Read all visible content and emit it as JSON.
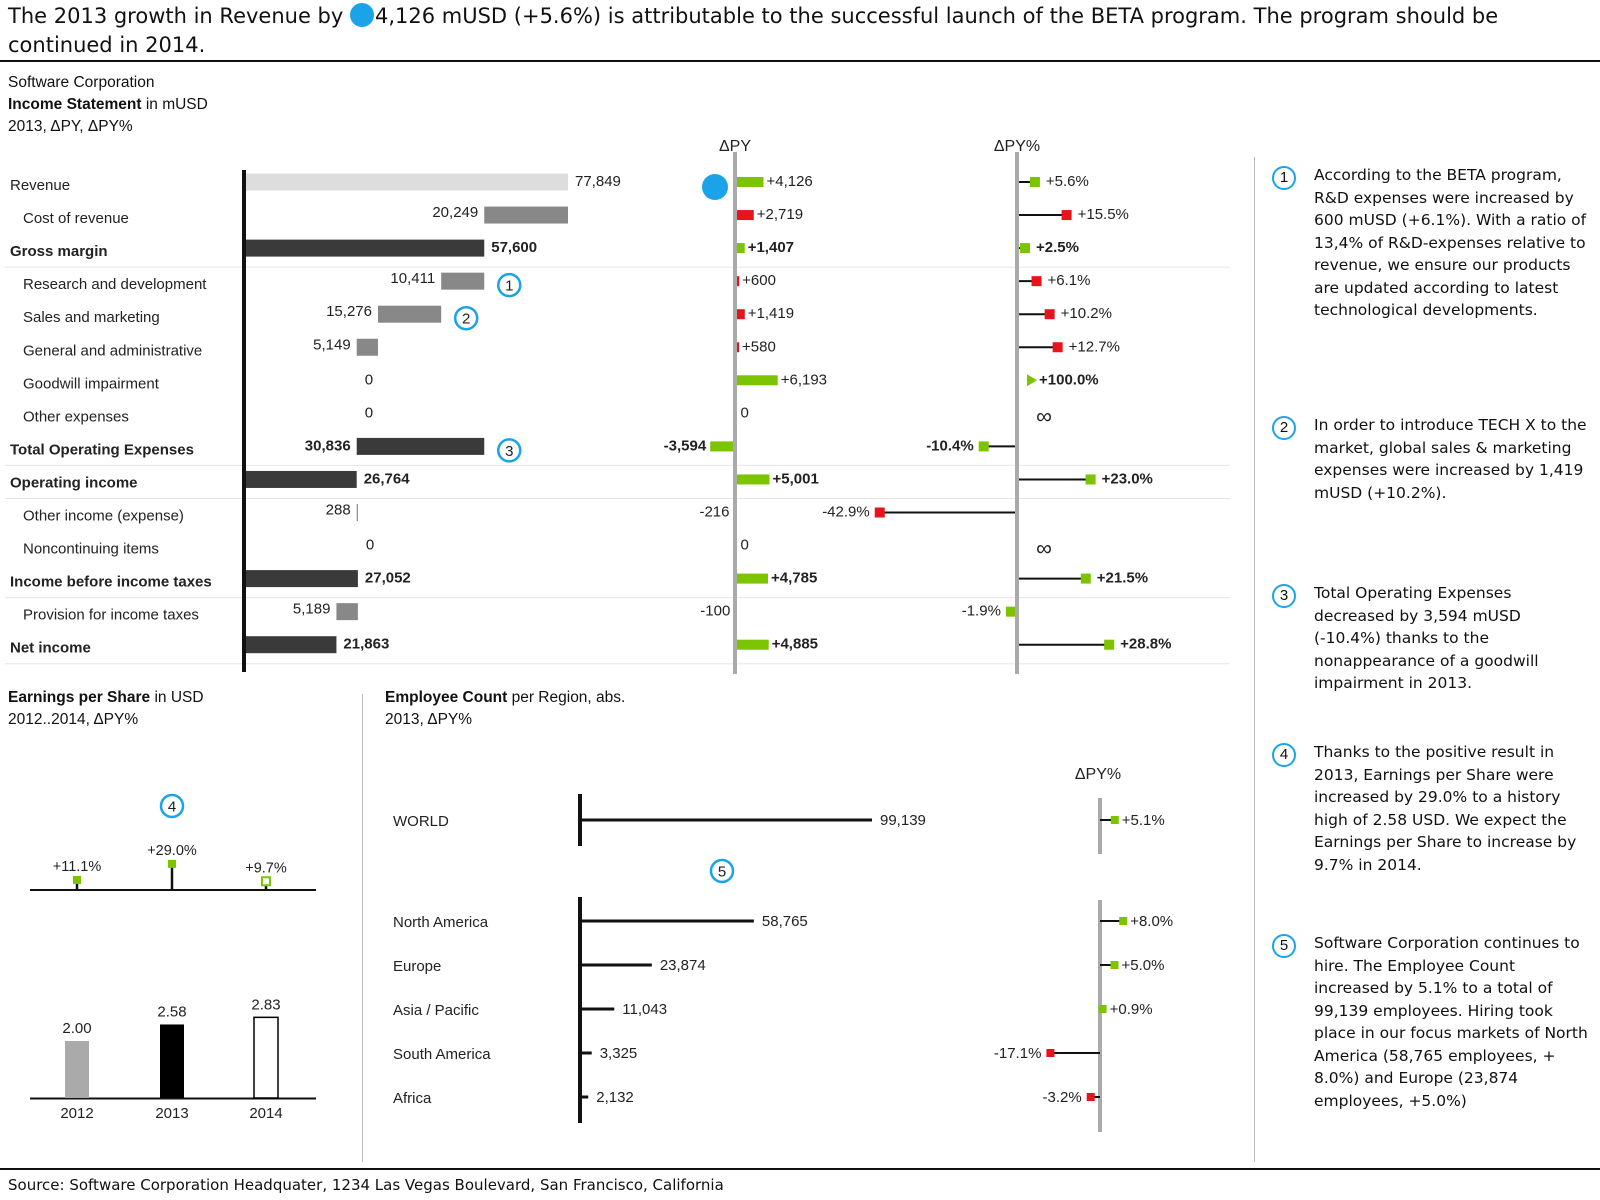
{
  "headline": {
    "before": "The 2013 growth in Revenue by ",
    "after": "4,126 mUSD (+5.6%) is attributable to the successful launch of the BETA program. The program should be continued in 2014."
  },
  "income": {
    "company": "Software Corporation",
    "title_bold": "Income Statement",
    "title_rest": " in mUSD",
    "subtitle": "2013, ΔPY, ΔPY%",
    "dpy_header": "ΔPY",
    "dpyp_header": "ΔPY%"
  },
  "eps": {
    "title_bold": "Earnings per Share",
    "title_rest": " in USD",
    "subtitle": "2012..2014, ΔPY%"
  },
  "emp": {
    "title_bold": "Employee Count",
    "title_rest": " per Region, abs.",
    "subtitle": "2013, ΔPY%",
    "dpyp_header": "ΔPY%"
  },
  "notes": [
    {
      "n": "1",
      "text": "According to the BETA program, R&D expenses were increased by 600 mUSD (+6.1%). With a ratio of 13,4% of R&D-expenses relative to revenue, we ensure our products are updated according to latest technological developments."
    },
    {
      "n": "2",
      "text": "In order to introduce TECH X to the market, global sales & marketing expenses were increased by 1,419 mUSD (+10.2%)."
    },
    {
      "n": "3",
      "text": "Total Operating Expenses decreased by 3,594 mUSD (-10.4%) thanks to the nonappearance of a goodwill impairment in 2013."
    },
    {
      "n": "4",
      "text": "Thanks to the positive result in 2013, Earnings per Share were increased by 29.0% to a history high of 2.58 USD. We expect the Earnings per Share to increase by 9.7% in 2014."
    },
    {
      "n": "5",
      "text": "Software Corporation continues to hire. The Employee Count increased by 5.1% to a total of 99,139 employees. Hiring took place in our focus markets of North America (58,765 employees, + 8.0%) and Europe (23,874 employees, +5.0%)"
    }
  ],
  "source": "Source: Software Corporation Headquater, 1234 Las Vegas Boulevard, San Francisco, California",
  "colors": {
    "accent": "#1aa3e8",
    "good": "#7cc400",
    "bad": "#e8141c",
    "total": "#3a3a3a",
    "sub": "#888888",
    "base": "#dddddd"
  },
  "chart_data": [
    {
      "type": "bar",
      "name": "income-statement",
      "rows": [
        {
          "label": "Revenue",
          "value": 77849,
          "value_label": "77,849",
          "kind": "base",
          "bold": false,
          "indent": false,
          "dpy": 4126,
          "dpy_label": "+4,126",
          "dpy_good": true,
          "dpyp": 5.6,
          "dpyp_label": "+5.6%",
          "dpyp_good": true,
          "marker": "dot"
        },
        {
          "label": "Cost of revenue",
          "value": 20249,
          "value_label": "20,249",
          "kind": "sub",
          "bold": false,
          "indent": true,
          "dpy": 2719,
          "dpy_label": "+2,719",
          "dpy_good": false,
          "dpyp": 15.5,
          "dpyp_label": "+15.5%",
          "dpyp_good": false
        },
        {
          "label": "Gross margin",
          "value": 57600,
          "value_label": "57,600",
          "kind": "total",
          "bold": true,
          "indent": false,
          "dpy": 1407,
          "dpy_label": "+1,407",
          "dpy_good": true,
          "dpyp": 2.5,
          "dpyp_label": "+2.5%",
          "dpyp_good": true,
          "sep": true
        },
        {
          "label": "Research and development",
          "value": 10411,
          "value_label": "10,411",
          "kind": "sub",
          "bold": false,
          "indent": true,
          "dpy": 600,
          "dpy_label": "+600",
          "dpy_good": false,
          "dpyp": 6.1,
          "dpyp_label": "+6.1%",
          "dpyp_good": false,
          "marker": "1"
        },
        {
          "label": "Sales and marketing",
          "value": 15276,
          "value_label": "15,276",
          "kind": "sub",
          "bold": false,
          "indent": true,
          "dpy": 1419,
          "dpy_label": "+1,419",
          "dpy_good": false,
          "dpyp": 10.2,
          "dpyp_label": "+10.2%",
          "dpyp_good": false,
          "marker": "2"
        },
        {
          "label": "General and administrative",
          "value": 5149,
          "value_label": "5,149",
          "kind": "sub",
          "bold": false,
          "indent": true,
          "dpy": 580,
          "dpy_label": "+580",
          "dpy_good": false,
          "dpyp": 12.7,
          "dpyp_label": "+12.7%",
          "dpyp_good": false
        },
        {
          "label": "Goodwill impairment",
          "value": 0,
          "value_label": "0",
          "kind": "sub",
          "bold": false,
          "indent": true,
          "dpy": 6193,
          "dpy_label": "+6,193",
          "dpy_good": true,
          "dpyp": 100.0,
          "dpyp_label": "+100.0%",
          "dpyp_good": true,
          "dpyp_bold": true,
          "dpyp_arrow": true
        },
        {
          "label": "Other expenses",
          "value": 0,
          "value_label": "0",
          "kind": "sub",
          "bold": false,
          "indent": true,
          "dpy": 0,
          "dpy_label": "0",
          "dpy_good": true,
          "dpyp": null,
          "dpyp_label": "∞",
          "dpyp_good": true
        },
        {
          "label": "Total Operating Expenses",
          "value": 30836,
          "value_label": "30,836",
          "kind": "total",
          "bold": true,
          "indent": false,
          "dpy": -3594,
          "dpy_label": "-3,594",
          "dpy_good": true,
          "dpyp": -10.4,
          "dpyp_label": "-10.4%",
          "dpyp_good": true,
          "marker": "3",
          "sep": true
        },
        {
          "label": "Operating income",
          "value": 26764,
          "value_label": "26,764",
          "kind": "total",
          "bold": true,
          "indent": false,
          "dpy": 5001,
          "dpy_label": "+5,001",
          "dpy_good": true,
          "dpyp": 23.0,
          "dpyp_label": "+23.0%",
          "dpyp_good": true,
          "sep": true
        },
        {
          "label": "Other income (expense)",
          "value": 288,
          "value_label": "288",
          "kind": "sub",
          "bold": false,
          "indent": true,
          "dpy": -216,
          "dpy_label": "-216",
          "dpy_good": false,
          "dpyp": -42.9,
          "dpyp_label": "-42.9%",
          "dpyp_good": false
        },
        {
          "label": "Noncontinuing items",
          "value": 0,
          "value_label": "0",
          "kind": "sub",
          "bold": false,
          "indent": true,
          "dpy": 0,
          "dpy_label": "0",
          "dpy_good": true,
          "dpyp": null,
          "dpyp_label": "∞",
          "dpyp_good": true
        },
        {
          "label": "Income before income taxes",
          "value": 27052,
          "value_label": "27,052",
          "kind": "total",
          "bold": true,
          "indent": false,
          "dpy": 4785,
          "dpy_label": "+4,785",
          "dpy_good": true,
          "dpyp": 21.5,
          "dpyp_label": "+21.5%",
          "dpyp_good": true,
          "sep": true
        },
        {
          "label": "Provision for income taxes",
          "value": 5189,
          "value_label": "5,189",
          "kind": "sub",
          "bold": false,
          "indent": true,
          "dpy": -100,
          "dpy_label": "-100",
          "dpy_good": true,
          "dpyp": -1.9,
          "dpyp_label": "-1.9%",
          "dpyp_good": true
        },
        {
          "label": "Net income",
          "value": 21863,
          "value_label": "21,863",
          "kind": "total",
          "bold": true,
          "indent": false,
          "dpy": 4885,
          "dpy_label": "+4,885",
          "dpy_good": true,
          "dpyp": 28.8,
          "dpyp_label": "+28.8%",
          "dpyp_good": true,
          "sep": true
        }
      ]
    },
    {
      "type": "bar",
      "name": "earnings-per-share",
      "categories": [
        "2012",
        "2013",
        "2014"
      ],
      "values": [
        2.0,
        2.58,
        2.83
      ],
      "value_labels": [
        "2.00",
        "2.58",
        "2.83"
      ],
      "styles": [
        "actual-prior",
        "actual",
        "plan"
      ],
      "dpyp": [
        11.1,
        29.0,
        9.7
      ],
      "dpyp_labels": [
        "+11.1%",
        "+29.0%",
        "+9.7%"
      ],
      "marker": "4"
    },
    {
      "type": "bar",
      "name": "employee-count",
      "world": {
        "label": "WORLD",
        "value": 99139,
        "value_label": "99,139",
        "dpyp": 5.1,
        "dpyp_label": "+5.1%",
        "dpyp_good": true
      },
      "regions": [
        {
          "label": "North America",
          "value": 58765,
          "value_label": "58,765",
          "dpyp": 8.0,
          "dpyp_label": "+8.0%",
          "dpyp_good": true
        },
        {
          "label": "Europe",
          "value": 23874,
          "value_label": "23,874",
          "dpyp": 5.0,
          "dpyp_label": "+5.0%",
          "dpyp_good": true
        },
        {
          "label": "Asia / Pacific",
          "value": 11043,
          "value_label": "11,043",
          "dpyp": 0.9,
          "dpyp_label": "+0.9%",
          "dpyp_good": true
        },
        {
          "label": "South America",
          "value": 3325,
          "value_label": "3,325",
          "dpyp": -17.1,
          "dpyp_label": "-17.1%",
          "dpyp_good": false
        },
        {
          "label": "Africa",
          "value": 2132,
          "value_label": "2,132",
          "dpyp": -3.2,
          "dpyp_label": "-3.2%",
          "dpyp_good": false
        }
      ],
      "marker": "5"
    }
  ]
}
